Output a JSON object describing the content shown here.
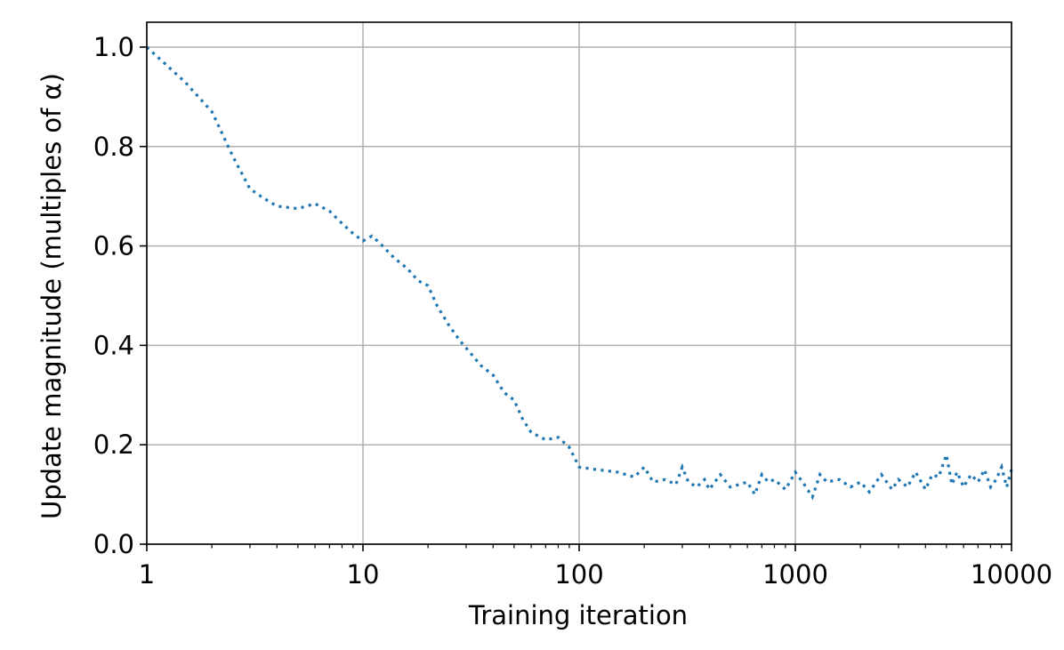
{
  "chart_data": {
    "type": "line",
    "title": "",
    "xlabel": "Training iteration",
    "ylabel": "Update magnitude (multiples of α)",
    "xscale": "log",
    "xlim": [
      1,
      10000
    ],
    "ylim": [
      0.0,
      1.05
    ],
    "grid": true,
    "line_style": "dotted",
    "xticks": [
      {
        "value": 1,
        "label": "1"
      },
      {
        "value": 10,
        "label": "10"
      },
      {
        "value": 100,
        "label": "100"
      },
      {
        "value": 1000,
        "label": "1000"
      },
      {
        "value": 10000,
        "label": "10000"
      }
    ],
    "yticks": [
      {
        "value": 0.0,
        "label": "0.0"
      },
      {
        "value": 0.2,
        "label": "0.2"
      },
      {
        "value": 0.4,
        "label": "0.4"
      },
      {
        "value": 0.6,
        "label": "0.6"
      },
      {
        "value": 0.8,
        "label": "0.8"
      },
      {
        "value": 1.0,
        "label": "1.0"
      }
    ],
    "series": [
      {
        "color": "#1f77b4",
        "x": [
          1,
          1.5,
          2,
          2.5,
          3,
          3.5,
          4,
          5,
          6,
          7,
          8,
          9,
          10,
          11,
          12,
          14,
          16,
          18,
          20,
          22,
          25,
          28,
          30,
          35,
          40,
          45,
          50,
          55,
          60,
          70,
          80,
          90,
          100,
          120,
          150,
          180,
          200,
          220,
          250,
          280,
          300,
          320,
          350,
          380,
          400,
          450,
          500,
          550,
          600,
          650,
          700,
          750,
          800,
          900,
          1000,
          1100,
          1200,
          1300,
          1400,
          1600,
          1800,
          2000,
          2200,
          2500,
          2800,
          3000,
          3300,
          3600,
          4000,
          4300,
          4600,
          5000,
          5300,
          5600,
          6000,
          6500,
          7000,
          7500,
          8000,
          8500,
          9000,
          9500,
          10000
        ],
        "y": [
          1.0,
          0.93,
          0.87,
          0.78,
          0.715,
          0.695,
          0.68,
          0.675,
          0.685,
          0.67,
          0.645,
          0.625,
          0.61,
          0.62,
          0.605,
          0.575,
          0.555,
          0.53,
          0.52,
          0.48,
          0.44,
          0.41,
          0.395,
          0.36,
          0.34,
          0.305,
          0.29,
          0.25,
          0.225,
          0.21,
          0.215,
          0.195,
          0.155,
          0.15,
          0.145,
          0.135,
          0.155,
          0.125,
          0.13,
          0.12,
          0.155,
          0.125,
          0.115,
          0.13,
          0.11,
          0.14,
          0.115,
          0.12,
          0.125,
          0.1,
          0.14,
          0.125,
          0.13,
          0.11,
          0.145,
          0.12,
          0.095,
          0.14,
          0.125,
          0.13,
          0.115,
          0.125,
          0.105,
          0.14,
          0.11,
          0.13,
          0.115,
          0.145,
          0.11,
          0.14,
          0.135,
          0.18,
          0.12,
          0.145,
          0.115,
          0.14,
          0.125,
          0.15,
          0.115,
          0.13,
          0.155,
          0.115,
          0.15
        ]
      }
    ]
  }
}
